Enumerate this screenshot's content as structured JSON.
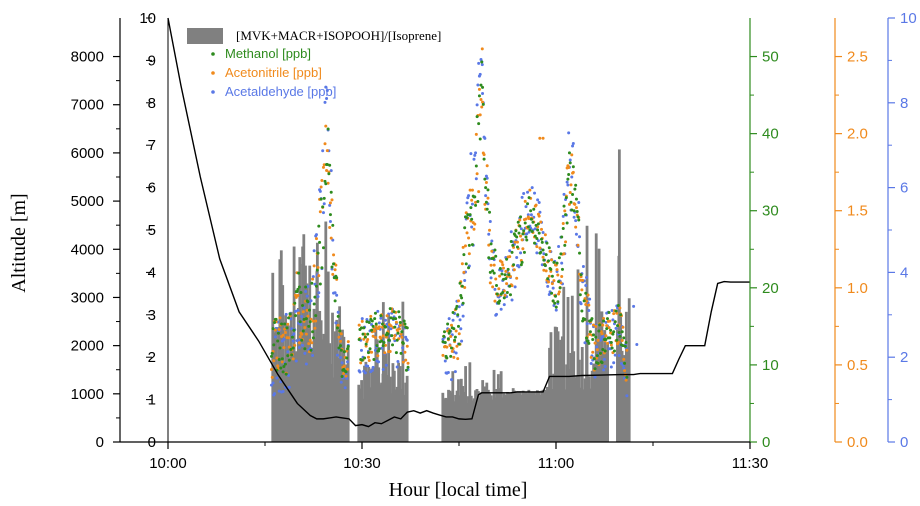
{
  "chart_data": {
    "type": "bar+scatter+line",
    "x_axis": {
      "label": "Hour [local time]",
      "range": [
        "10:00",
        "11:30"
      ],
      "range_minutes": [
        0,
        90
      ],
      "ticks": [
        {
          "value": 0,
          "label": "10:00"
        },
        {
          "value": 30,
          "label": "10:30"
        },
        {
          "value": 60,
          "label": "11:00"
        },
        {
          "value": 90,
          "label": "11:30"
        }
      ]
    },
    "altitude_axis": {
      "label": "Altitude [m]",
      "range": [
        0,
        8800
      ],
      "ticks": [
        0,
        1000,
        2000,
        3000,
        4000,
        5000,
        6000,
        7000,
        8000
      ],
      "color": "#000000"
    },
    "ratio_axis": {
      "range": [
        0,
        10
      ],
      "ticks": [
        0,
        1,
        2,
        3,
        4,
        5,
        6,
        7,
        8,
        9,
        10
      ],
      "color": "#000000"
    },
    "methanol_axis": {
      "range": [
        0,
        55
      ],
      "ticks": [
        0,
        10,
        20,
        30,
        40,
        50
      ],
      "color": "#2e8b1e"
    },
    "acetonitrile_axis": {
      "range": [
        0,
        2.75
      ],
      "ticks": [
        "0.0",
        "0.5",
        "1.0",
        "1.5",
        "2.0",
        "2.5"
      ],
      "color": "#f08a1c"
    },
    "acetaldehyde_axis": {
      "range": [
        0,
        10
      ],
      "ticks": [
        0,
        2,
        4,
        6,
        8,
        10
      ],
      "color": "#5a78e6"
    },
    "legend": [
      {
        "name": "[MVK+MACR+ISOPOOH]/[Isoprene]",
        "kind": "bar",
        "color": "#808080"
      },
      {
        "name": "Methanol [ppb]",
        "kind": "point",
        "color": "#2e8b1e"
      },
      {
        "name": "Acetonitrile [ppb]",
        "kind": "point",
        "color": "#f08a1c"
      },
      {
        "name": "Acetaldehyde [ppb]",
        "kind": "point",
        "color": "#5a78e6"
      }
    ],
    "altitude_series": {
      "name": "Altitude",
      "color": "#000000",
      "x": [
        0,
        2,
        5,
        8,
        11,
        14,
        17,
        19,
        20,
        22,
        23,
        24,
        25,
        26,
        27,
        28,
        29,
        30,
        31,
        32,
        33,
        34,
        35,
        36,
        37,
        38,
        39,
        40,
        41,
        42,
        43,
        44,
        45,
        46,
        47,
        48,
        48.5,
        53,
        54,
        55,
        58,
        59,
        62,
        64,
        67,
        70,
        72,
        73,
        75,
        77,
        78,
        79,
        80,
        81,
        82,
        83,
        84,
        85,
        86,
        87,
        87.5,
        90
      ],
      "y": [
        8800,
        7400,
        5500,
        3800,
        2700,
        2100,
        1400,
        1000,
        800,
        550,
        480,
        480,
        500,
        520,
        500,
        480,
        340,
        360,
        320,
        400,
        380,
        450,
        520,
        480,
        620,
        650,
        600,
        650,
        600,
        560,
        520,
        520,
        480,
        470,
        480,
        980,
        1020,
        1020,
        1040,
        1040,
        1040,
        1360,
        1360,
        1380,
        1390,
        1400,
        1400,
        1420,
        1420,
        1420,
        1420,
        1720,
        2000,
        2000,
        2000,
        2000,
        2700,
        3290,
        3330,
        3320,
        3320,
        3320
      ]
    },
    "ratio_bars": [],
    "methanol_points": [],
    "acetonitrile_points": [],
    "acetaldehyde_points": []
  }
}
